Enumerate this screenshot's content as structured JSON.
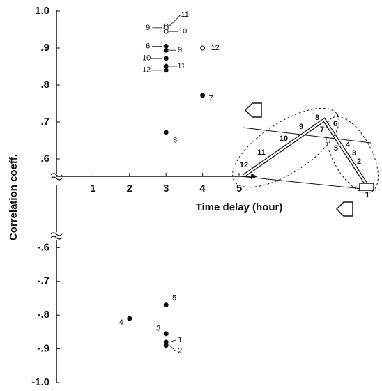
{
  "chart_data": [
    {
      "type": "scatter",
      "xlabel": "Time delay (hour)",
      "ylabel": "Correlation coeff.",
      "xlim": [
        0,
        5.5
      ],
      "xticks": [
        1,
        2,
        3,
        4,
        5
      ],
      "ylim": [
        0.55,
        1.0
      ],
      "yticks": [
        {
          "value": 1.0,
          "label": "1.0"
        },
        {
          "value": 0.9,
          "label": ".9"
        },
        {
          "value": 0.8,
          "label": ".8"
        },
        {
          "value": 0.7,
          "label": ".7"
        },
        {
          "value": 0.6,
          "label": ".6"
        }
      ],
      "series": [
        {
          "color": "#111111",
          "marker": "filled",
          "x": [
            3,
            3,
            3,
            3,
            3,
            4,
            3
          ],
          "values": [
            0.905,
            0.894,
            0.872,
            0.851,
            0.84,
            0.772,
            0.672
          ],
          "labels": [
            "6",
            "9",
            "10",
            "11",
            "12",
            "7",
            "8"
          ]
        },
        {
          "color": "#111111",
          "marker": "open",
          "x": [
            3,
            3,
            3,
            4
          ],
          "values": [
            0.96,
            0.955,
            0.945,
            0.9
          ],
          "labels": [
            "11",
            "9",
            "10",
            "12"
          ]
        }
      ]
    },
    {
      "type": "scatter",
      "ylim": [
        -1.0,
        -0.56
      ],
      "yticks": [
        {
          "value": -0.6,
          "label": "-.6"
        },
        {
          "value": -0.7,
          "label": "-.7"
        },
        {
          "value": -0.8,
          "label": "-.8"
        },
        {
          "value": -0.9,
          "label": "-.9"
        },
        {
          "value": -1.0,
          "label": "-1.0"
        }
      ],
      "series": [
        {
          "color": "#111111",
          "marker": "filled",
          "x": [
            3,
            2,
            3,
            3,
            3
          ],
          "values": [
            -0.77,
            -0.81,
            -0.855,
            -0.88,
            -0.89
          ],
          "labels": [
            "5",
            "4",
            "3",
            "1",
            "2"
          ]
        }
      ]
    }
  ],
  "diagram": {
    "labels": [
      "1",
      "2",
      "3",
      "4",
      "5",
      "6",
      "7",
      "8",
      "9",
      "10",
      "11",
      "12"
    ]
  }
}
